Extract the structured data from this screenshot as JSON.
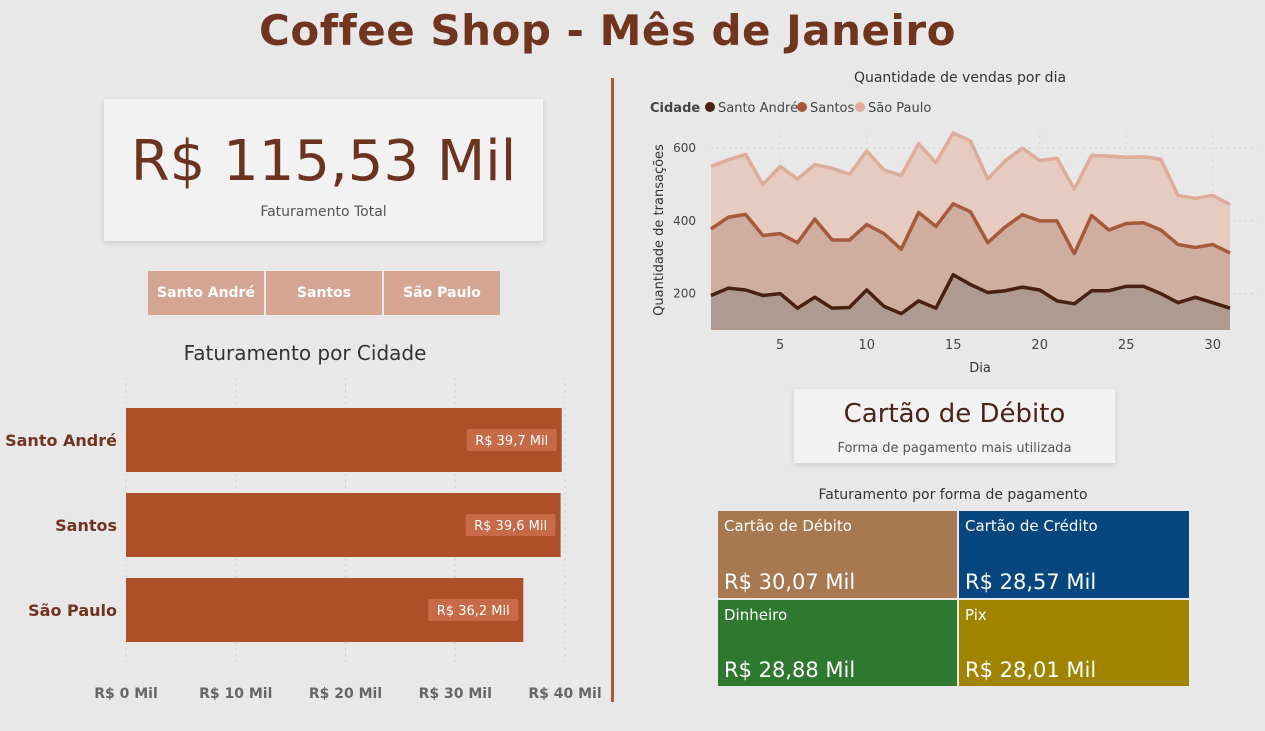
{
  "title": "Coffee Shop - Mês de Janeiro",
  "kpi_total": {
    "value": "R$ 115,53 Mil",
    "label": "Faturamento Total"
  },
  "slicer": {
    "items": [
      "Santo André",
      "Santos",
      "São Paulo"
    ]
  },
  "kpi_payment": {
    "value": "Cartão de Débito",
    "label": "Forma de pagamento mais utilizada"
  },
  "colors": {
    "accent_brown": "#70341f",
    "bar": "#ad5029",
    "santo_andre": "#4a2010",
    "santos": "#a65a3c",
    "sao_paulo": "#deac9a",
    "slicer": "#d5a592"
  },
  "chart_data": [
    {
      "type": "bar",
      "orientation": "horizontal",
      "title": "Faturamento por Cidade",
      "categories": [
        "Santo André",
        "Santos",
        "São Paulo"
      ],
      "values": [
        39.7,
        39.6,
        36.2
      ],
      "data_labels": [
        "R$ 39,7 Mil",
        "R$ 39,6 Mil",
        "R$ 36,2 Mil"
      ],
      "xlim": [
        0,
        40
      ],
      "x_ticks": [
        0,
        10,
        20,
        30,
        40
      ],
      "x_tick_labels": [
        "R$ 0 Mil",
        "R$ 10 Mil",
        "R$ 20 Mil",
        "R$ 30 Mil",
        "R$ 40 Mil"
      ],
      "grid": true
    },
    {
      "type": "area",
      "stacked": true,
      "title": "Quantidade de vendas por dia",
      "xlabel": "Dia",
      "ylabel": "Quantidade de transações",
      "legend_title": "Cidade",
      "legend_position": "top-left",
      "x": [
        1,
        2,
        3,
        4,
        5,
        6,
        7,
        8,
        9,
        10,
        11,
        12,
        13,
        14,
        15,
        16,
        17,
        18,
        19,
        20,
        21,
        22,
        23,
        24,
        25,
        26,
        27,
        28,
        29,
        30,
        31
      ],
      "x_ticks": [
        5,
        10,
        15,
        20,
        25,
        30
      ],
      "y_ticks": [
        200,
        400,
        600
      ],
      "ylim": [
        100,
        650
      ],
      "series": [
        {
          "name": "Santo André",
          "color": "#4a2010",
          "values": [
            195,
            215,
            210,
            195,
            200,
            160,
            190,
            160,
            162,
            210,
            165,
            145,
            180,
            160,
            252,
            225,
            203,
            208,
            218,
            210,
            180,
            172,
            208,
            208,
            220,
            220,
            200,
            175,
            190,
            175,
            160
          ]
        },
        {
          "name": "Santos",
          "color": "#a65a3c",
          "values": [
            378,
            410,
            418,
            360,
            365,
            340,
            405,
            348,
            347,
            390,
            365,
            322,
            423,
            385,
            447,
            425,
            340,
            383,
            417,
            400,
            400,
            310,
            415,
            375,
            393,
            395,
            375,
            335,
            327,
            335,
            312
          ]
        },
        {
          "name": "São Paulo",
          "color": "#deac9a",
          "values": [
            550,
            568,
            583,
            500,
            550,
            515,
            555,
            545,
            528,
            592,
            540,
            525,
            612,
            560,
            642,
            620,
            515,
            565,
            600,
            566,
            572,
            487,
            580,
            578,
            575,
            576,
            570,
            470,
            462,
            470,
            445
          ]
        }
      ]
    },
    {
      "type": "treemap",
      "title": "Faturamento por forma de pagamento",
      "items": [
        {
          "label": "Cartão de Débito",
          "value": 30.07,
          "value_label": "R$ 30,07 Mil",
          "color": "#a87850"
        },
        {
          "label": "Cartão de Crédito",
          "value": 28.57,
          "value_label": "R$ 28,57 Mil",
          "color": "#07467f"
        },
        {
          "label": "Dinheiro",
          "value": 28.88,
          "value_label": "R$ 28,88 Mil",
          "color": "#2f7830"
        },
        {
          "label": "Pix",
          "value": 28.01,
          "value_label": "R$ 28,01 Mil",
          "color": "#a08400"
        }
      ]
    }
  ]
}
